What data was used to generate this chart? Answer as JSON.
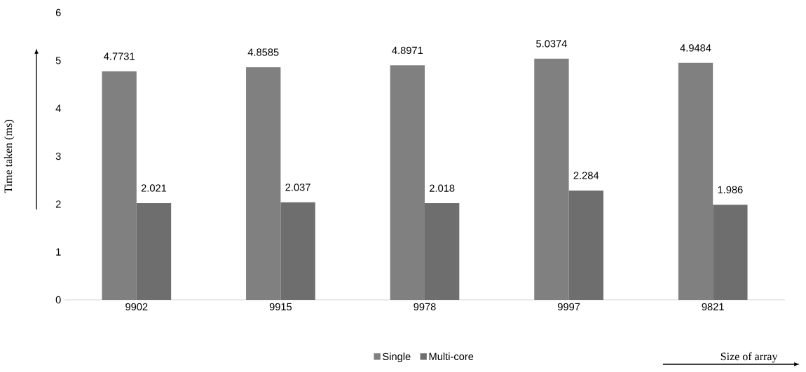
{
  "chart_data": {
    "type": "bar",
    "xlabel": "Size of array",
    "ylabel": "Time taken (ms)",
    "categories": [
      "9902",
      "9915",
      "9978",
      "9997",
      "9821"
    ],
    "series": [
      {
        "name": "Single",
        "color": "#808080",
        "values": [
          4.7731,
          4.8585,
          4.8971,
          5.0374,
          4.9484
        ]
      },
      {
        "name": "Multi-core",
        "color": "#6e6e6e",
        "values": [
          2.021,
          2.037,
          2.018,
          2.284,
          1.986
        ]
      }
    ],
    "ylim": [
      0,
      6
    ],
    "yticks": [
      0,
      1,
      2,
      3,
      4,
      5,
      6
    ],
    "data_labels": true,
    "legend": "bottom",
    "grid": false
  }
}
